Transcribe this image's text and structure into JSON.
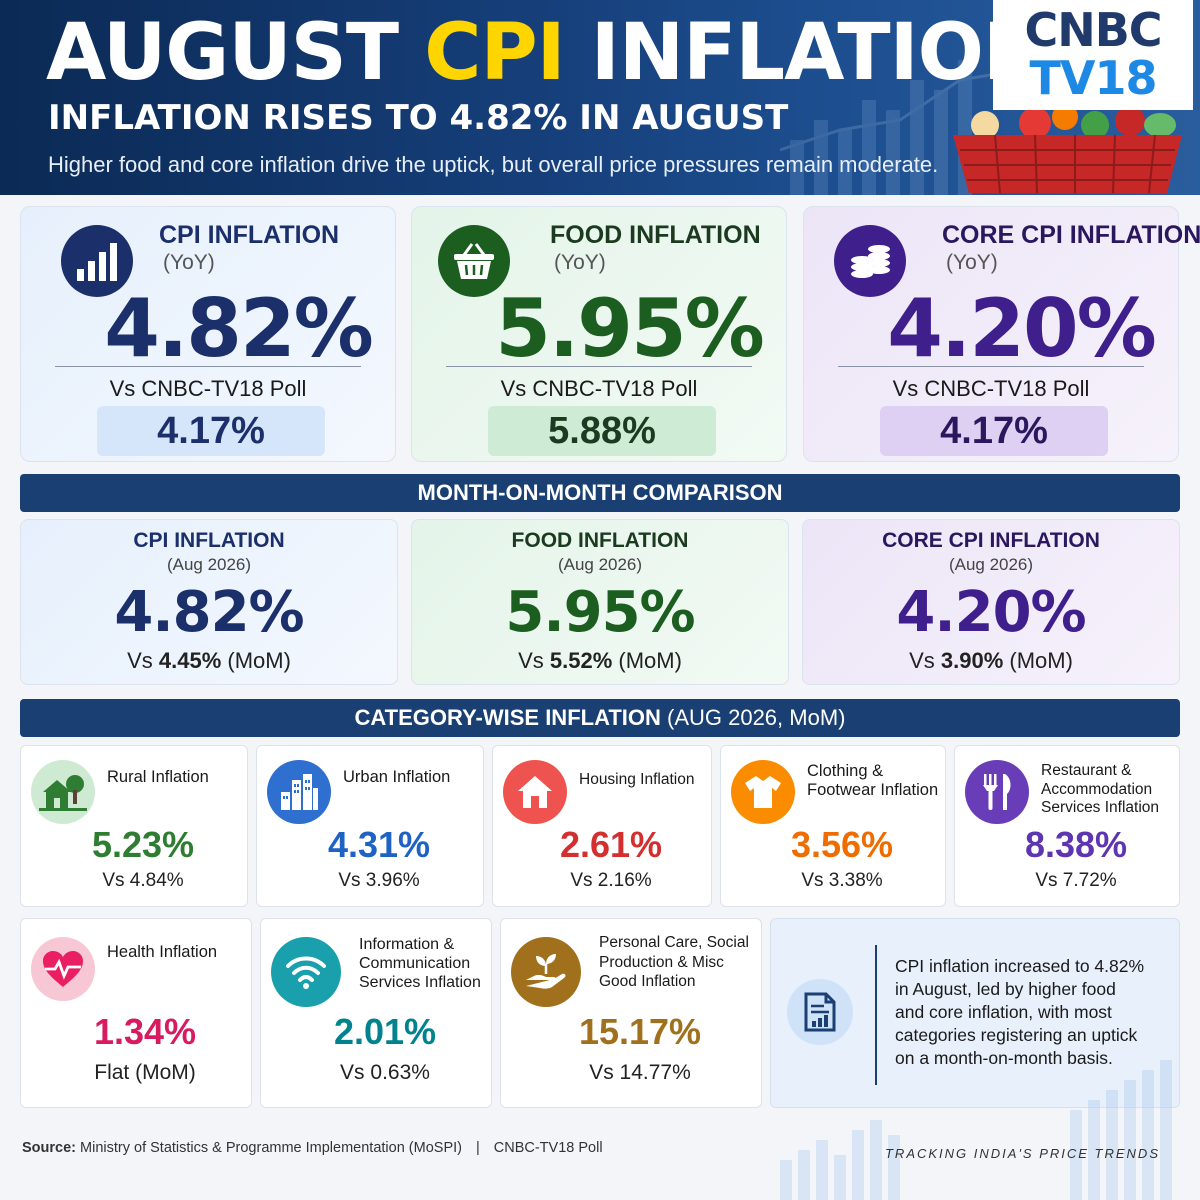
{
  "header": {
    "title_pre": "AUGUST ",
    "title_accent": "CPI",
    "title_post": " INFLATION",
    "subtitle": "INFLATION RISES TO 4.82% IN AUGUST",
    "tagline": "Higher food and core inflation drive the uptick, but overall price pressures remain moderate.",
    "logo_line1": "CNBC",
    "logo_line2": "TV18"
  },
  "yoy_cards": [
    {
      "label": "CPI INFLATION",
      "sub": "(YoY)",
      "value": "4.82%",
      "poll_label": "Vs CNBC-TV18 Poll",
      "poll_value": "4.17%"
    },
    {
      "label": "FOOD INFLATION",
      "sub": "(YoY)",
      "value": "5.95%",
      "poll_label": "Vs CNBC-TV18 Poll",
      "poll_value": "5.88%"
    },
    {
      "label": "CORE CPI INFLATION",
      "sub": "(YoY)",
      "value": "4.20%",
      "poll_label": "Vs CNBC-TV18 Poll",
      "poll_value": "4.17%"
    }
  ],
  "mom_banner": "MONTH-ON-MONTH COMPARISON",
  "mom_cards": [
    {
      "label": "CPI INFLATION",
      "period": "(Aug 2026)",
      "value": "4.82%",
      "vs": "Vs ",
      "prev": "4.45%",
      "unit": " (MoM)"
    },
    {
      "label": "FOOD INFLATION",
      "period": "(Aug 2026)",
      "value": "5.95%",
      "vs": "Vs ",
      "prev": "5.52%",
      "unit": " (MoM)"
    },
    {
      "label": "CORE CPI INFLATION",
      "period": "(Aug 2026)",
      "value": "4.20%",
      "vs": "Vs ",
      "prev": "3.90%",
      "unit": " (MoM)"
    }
  ],
  "category_banner": {
    "bold": "CATEGORY-WISE INFLATION",
    "rest": " (AUG 2026, MoM)"
  },
  "categories": [
    {
      "label": "Rural Inflation",
      "value": "5.23%",
      "compare": "Vs 4.84%",
      "icon": "house-tree-icon",
      "color": "#2e7d32"
    },
    {
      "label": "Urban Inflation",
      "value": "4.31%",
      "compare": "Vs 3.96%",
      "icon": "buildings-icon",
      "color": "#1e63c4"
    },
    {
      "label": "Housing Inflation",
      "value": "2.61%",
      "compare": "Vs 2.16%",
      "icon": "home-icon",
      "color": "#d32f2f"
    },
    {
      "label": "Clothing & Footwear Inflation",
      "value": "3.56%",
      "compare": "Vs 3.38%",
      "icon": "tshirt-icon",
      "color": "#ef6c00"
    },
    {
      "label": "Restaurant & Accommodation Services Inflation",
      "value": "8.38%",
      "compare": "Vs 7.72%",
      "icon": "fork-knife-icon",
      "color": "#5e35b1"
    },
    {
      "label": "Health Inflation",
      "value": "1.34%",
      "compare": "Flat (MoM)",
      "icon": "heartbeat-icon",
      "color": "#d81b60"
    },
    {
      "label": "Information & Communication Services Inflation",
      "value": "2.01%",
      "compare": "Vs 0.63%",
      "icon": "wifi-icon",
      "color": "#00838f"
    },
    {
      "label": "Personal Care, Social Production & Misc Good Inflation",
      "value": "15.17%",
      "compare": "Vs 14.77%",
      "icon": "hand-plant-icon",
      "color": "#a1701c"
    }
  ],
  "summary": {
    "pre": "CPI inflation increased to ",
    "highlight": "4.82%",
    "post": " in August, led by higher food and core inflation, with most categories registering an uptick on a month-on-month basis."
  },
  "footer": {
    "source_label": "Source:",
    "source_text": " Ministry of Statistics & Programme Implementation (MoSPI)",
    "separator": "|",
    "poll": "CNBC-TV18 Poll",
    "tagline": "TRACKING INDIA'S PRICE TRENDS"
  },
  "colors": {
    "navy": "#1a3f73",
    "cpi_blue": "#1b2f6b",
    "food_green": "#1b5e20",
    "core_purple": "#3f1f8c",
    "title_accent": "#ffd500"
  }
}
